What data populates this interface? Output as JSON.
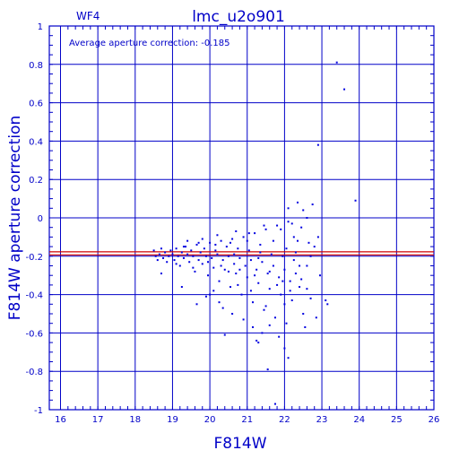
{
  "chart_data": {
    "type": "scatter",
    "title": "lmc_u2o901",
    "chip_label": "WF4",
    "annotation": "Average aperture correction: -0.185",
    "xlabel": "F814W",
    "ylabel": "F814W aperture correction",
    "xlim": [
      15.7,
      26
    ],
    "ylim": [
      -1,
      1
    ],
    "x_ticks": [
      16,
      17,
      18,
      19,
      20,
      21,
      22,
      23,
      24,
      25,
      26
    ],
    "y_ticks": [
      -1,
      -0.8,
      -0.6,
      -0.4,
      -0.2,
      0,
      0.2,
      0.4,
      0.6,
      0.8,
      1
    ],
    "x_tick_labels": [
      "16",
      "17",
      "18",
      "19",
      "20",
      "21",
      "22",
      "23",
      "24",
      "25",
      "26"
    ],
    "y_tick_labels": [
      "-1",
      "-0.8",
      "-0.6",
      "-0.4",
      "-0.2",
      "0",
      "0.2",
      "0.4",
      "0.6",
      "0.8",
      "1"
    ],
    "grid": true,
    "average_line": -0.185,
    "average_line_offset": 0.008,
    "colors": {
      "axis": "#0000c8",
      "points": "#0000e0",
      "average_line": "#d00000"
    },
    "series": [
      {
        "points": [
          [
            18.5,
            -0.17
          ],
          [
            18.55,
            -0.2
          ],
          [
            18.6,
            -0.22
          ],
          [
            18.65,
            -0.19
          ],
          [
            18.7,
            -0.16
          ],
          [
            18.75,
            -0.21
          ],
          [
            18.8,
            -0.18
          ],
          [
            18.85,
            -0.23
          ],
          [
            18.9,
            -0.2
          ],
          [
            18.95,
            -0.17
          ],
          [
            19.0,
            -0.19
          ],
          [
            19.05,
            -0.22
          ],
          [
            19.1,
            -0.16
          ],
          [
            19.15,
            -0.2
          ],
          [
            19.2,
            -0.25
          ],
          [
            19.25,
            -0.18
          ],
          [
            19.3,
            -0.21
          ],
          [
            19.35,
            -0.15
          ],
          [
            19.4,
            -0.19
          ],
          [
            19.45,
            -0.23
          ],
          [
            19.5,
            -0.17
          ],
          [
            19.55,
            -0.2
          ],
          [
            19.6,
            -0.28
          ],
          [
            19.65,
            -0.14
          ],
          [
            19.7,
            -0.22
          ],
          [
            19.75,
            -0.18
          ],
          [
            19.8,
            -0.24
          ],
          [
            19.85,
            -0.16
          ],
          [
            19.9,
            -0.2
          ],
          [
            19.95,
            -0.3
          ],
          [
            20.0,
            -0.13
          ],
          [
            20.05,
            -0.21
          ],
          [
            20.1,
            -0.26
          ],
          [
            20.15,
            -0.17
          ],
          [
            20.2,
            -0.19
          ],
          [
            20.25,
            -0.33
          ],
          [
            20.3,
            -0.12
          ],
          [
            20.35,
            -0.22
          ],
          [
            20.4,
            -0.27
          ],
          [
            20.45,
            -0.15
          ],
          [
            20.5,
            -0.2
          ],
          [
            20.55,
            -0.36
          ],
          [
            20.6,
            -0.11
          ],
          [
            20.65,
            -0.24
          ],
          [
            20.7,
            -0.29
          ],
          [
            20.75,
            -0.16
          ],
          [
            20.8,
            -0.21
          ],
          [
            20.85,
            -0.4
          ],
          [
            20.9,
            -0.1
          ],
          [
            20.95,
            -0.25
          ],
          [
            21.0,
            -0.31
          ],
          [
            21.05,
            -0.17
          ],
          [
            21.1,
            -0.22
          ],
          [
            21.15,
            -0.44
          ],
          [
            21.2,
            -0.08
          ],
          [
            21.25,
            -0.27
          ],
          [
            21.3,
            -0.34
          ],
          [
            21.35,
            -0.18
          ],
          [
            21.4,
            -0.23
          ],
          [
            21.45,
            -0.48
          ],
          [
            21.5,
            -0.06
          ],
          [
            21.55,
            -0.29
          ],
          [
            21.6,
            -0.37
          ],
          [
            21.65,
            -0.19
          ],
          [
            21.7,
            -0.25
          ],
          [
            21.75,
            -0.52
          ],
          [
            21.8,
            -0.04
          ],
          [
            21.85,
            -0.31
          ],
          [
            21.9,
            -0.4
          ],
          [
            21.95,
            -0.2
          ],
          [
            22.0,
            -0.27
          ],
          [
            22.05,
            -0.55
          ],
          [
            22.1,
            -0.02
          ],
          [
            22.15,
            -0.33
          ],
          [
            22.2,
            -0.43
          ],
          [
            22.25,
            -0.22
          ],
          [
            22.3,
            -0.29
          ],
          [
            22.35,
            -0.12
          ],
          [
            22.4,
            -0.36
          ],
          [
            22.45,
            -0.05
          ],
          [
            22.5,
            -0.5
          ],
          [
            22.6,
            -0.25
          ],
          [
            22.7,
            -0.42
          ],
          [
            22.8,
            -0.15
          ],
          [
            19.25,
            -0.36
          ],
          [
            19.65,
            -0.45
          ],
          [
            19.9,
            -0.41
          ],
          [
            20.1,
            -0.38
          ],
          [
            20.35,
            -0.47
          ],
          [
            20.6,
            -0.5
          ],
          [
            20.9,
            -0.53
          ],
          [
            21.15,
            -0.57
          ],
          [
            21.4,
            -0.6
          ],
          [
            21.6,
            -0.56
          ],
          [
            21.85,
            -0.62
          ],
          [
            20.4,
            -0.61
          ],
          [
            21.25,
            -0.64
          ],
          [
            21.3,
            -0.65
          ],
          [
            22.1,
            -0.73
          ],
          [
            21.55,
            -0.79
          ],
          [
            21.75,
            -0.97
          ],
          [
            22.0,
            -0.68
          ],
          [
            22.55,
            -0.57
          ],
          [
            22.85,
            -0.52
          ],
          [
            23.1,
            -0.43
          ],
          [
            23.15,
            -0.45
          ],
          [
            22.2,
            -0.03
          ],
          [
            22.5,
            0.04
          ],
          [
            22.6,
            0.0
          ],
          [
            22.75,
            0.07
          ],
          [
            22.35,
            0.08
          ],
          [
            22.1,
            0.05
          ],
          [
            22.9,
            0.38
          ],
          [
            23.4,
            0.81
          ],
          [
            23.6,
            0.67
          ],
          [
            23.9,
            0.09
          ],
          [
            18.7,
            -0.29
          ],
          [
            19.4,
            -0.12
          ],
          [
            19.8,
            -0.11
          ],
          [
            20.2,
            -0.09
          ],
          [
            20.7,
            -0.07
          ],
          [
            21.05,
            -0.08
          ],
          [
            21.45,
            -0.04
          ],
          [
            21.9,
            -0.06
          ],
          [
            22.25,
            -0.1
          ],
          [
            22.65,
            -0.13
          ],
          [
            22.3,
            -0.18
          ],
          [
            22.7,
            -0.2
          ],
          [
            22.9,
            -0.1
          ],
          [
            22.95,
            -0.3
          ],
          [
            19.1,
            -0.24
          ],
          [
            19.3,
            -0.15
          ],
          [
            19.55,
            -0.26
          ],
          [
            19.7,
            -0.13
          ],
          [
            19.95,
            -0.23
          ],
          [
            20.15,
            -0.14
          ],
          [
            20.3,
            -0.25
          ],
          [
            20.55,
            -0.13
          ],
          [
            20.8,
            -0.27
          ],
          [
            21.0,
            -0.12
          ],
          [
            21.2,
            -0.3
          ],
          [
            21.35,
            -0.14
          ],
          [
            21.6,
            -0.28
          ],
          [
            21.7,
            -0.12
          ],
          [
            21.95,
            -0.33
          ],
          [
            22.05,
            -0.16
          ],
          [
            22.15,
            -0.38
          ],
          [
            22.4,
            -0.25
          ],
          [
            22.45,
            -0.32
          ],
          [
            22.6,
            -0.37
          ],
          [
            20.0,
            -0.4
          ],
          [
            20.25,
            -0.44
          ],
          [
            20.5,
            -0.28
          ],
          [
            20.75,
            -0.35
          ],
          [
            21.1,
            -0.38
          ],
          [
            21.5,
            -0.46
          ],
          [
            21.8,
            -0.35
          ],
          [
            22.0,
            -0.45
          ],
          [
            20.65,
            -0.19
          ],
          [
            21.3,
            -0.21
          ]
        ]
      }
    ]
  }
}
